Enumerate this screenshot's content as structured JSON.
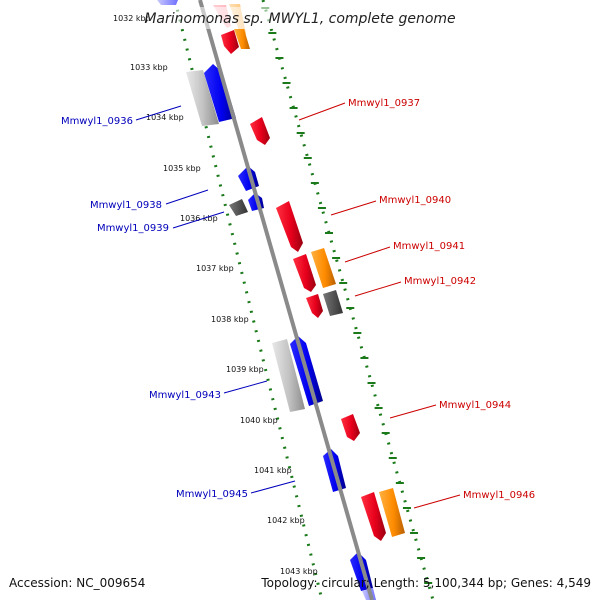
{
  "title": "Marinomonas sp. MWYL1, complete genome",
  "ticks": [
    "1032 kbp",
    "1033 kbp",
    "1034 kbp",
    "1035 kbp",
    "1036 kbp",
    "1037 kbp",
    "1038 kbp",
    "1039 kbp",
    "1040 kbp",
    "1041 kbp",
    "1042 kbp",
    "1043 kbp"
  ],
  "gene_labels": {
    "left": [
      "Mmwyl1_0936",
      "Mmwyl1_0938",
      "Mmwyl1_0939",
      "Mmwyl1_0943",
      "Mmwyl1_0945"
    ],
    "right": [
      "Mmwyl1_0937",
      "Mmwyl1_0940",
      "Mmwyl1_0941",
      "Mmwyl1_0942",
      "Mmwyl1_0944",
      "Mmwyl1_0946"
    ]
  },
  "colors": {
    "forward_label": "#cc0000",
    "reverse_label": "#0000bb",
    "backbone": "#8a8a8a",
    "dotted_track": "#1a7a1a",
    "gene_red": "#e8001c",
    "gene_orange": "#ff8c00",
    "gene_blue": "#0000ee",
    "gene_gray": "#b8b8b8",
    "gene_darkgray": "#555555"
  },
  "footer": {
    "accession": "Accession: NC_009654",
    "summary": "Topology: circular; Length: 5,100,344 bp; Genes: 4,549"
  }
}
